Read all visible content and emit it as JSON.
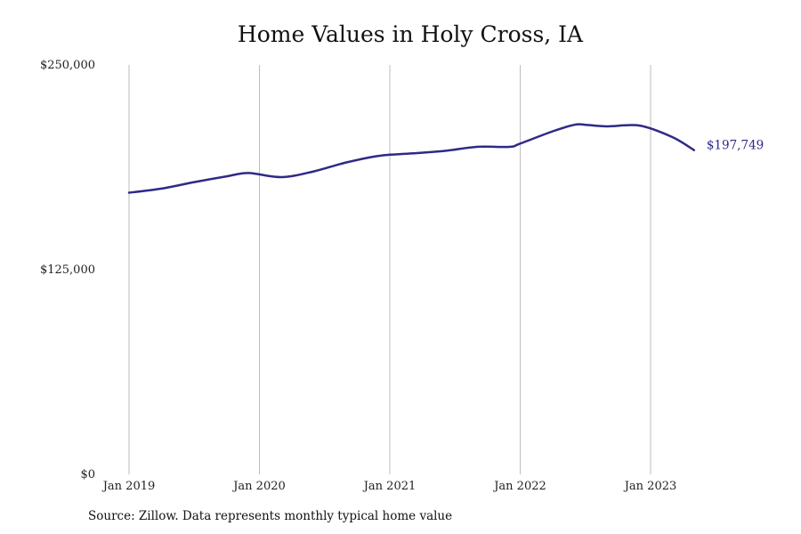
{
  "source_note": "Source: Zillow. Data represents monthly typical home value",
  "chart_data": {
    "type": "line",
    "title": "Home Values in Holy Cross, IA",
    "xlabel": "",
    "ylabel": "",
    "ylim": [
      0,
      250000
    ],
    "yticks": [
      {
        "value": 0,
        "label": "$0"
      },
      {
        "value": 125000,
        "label": "$125,000"
      },
      {
        "value": 250000,
        "label": "$250,000"
      }
    ],
    "xticks": [
      {
        "value": "2019-01",
        "label": "Jan 2019"
      },
      {
        "value": "2020-01",
        "label": "Jan 2020"
      },
      {
        "value": "2021-01",
        "label": "Jan 2021"
      },
      {
        "value": "2022-01",
        "label": "Jan 2022"
      },
      {
        "value": "2023-01",
        "label": "Jan 2023"
      }
    ],
    "grid": "vertical",
    "line_color": "#2e2a86",
    "end_label": "$197,749",
    "series": [
      {
        "x": [
          "2019-01",
          "2019-04",
          "2019-07",
          "2019-10",
          "2019-12",
          "2020-03",
          "2020-06",
          "2020-09",
          "2020-12",
          "2021-03",
          "2021-06",
          "2021-09",
          "2021-12",
          "2022-01",
          "2022-04",
          "2022-06",
          "2022-07",
          "2022-09",
          "2022-12",
          "2023-03",
          "2023-05"
        ],
        "values": [
          172000,
          174500,
          178500,
          182000,
          184000,
          181500,
          185000,
          190500,
          194500,
          196000,
          197500,
          200000,
          200000,
          202000,
          209500,
          213500,
          213500,
          212500,
          213000,
          206000,
          198000
        ]
      }
    ]
  }
}
